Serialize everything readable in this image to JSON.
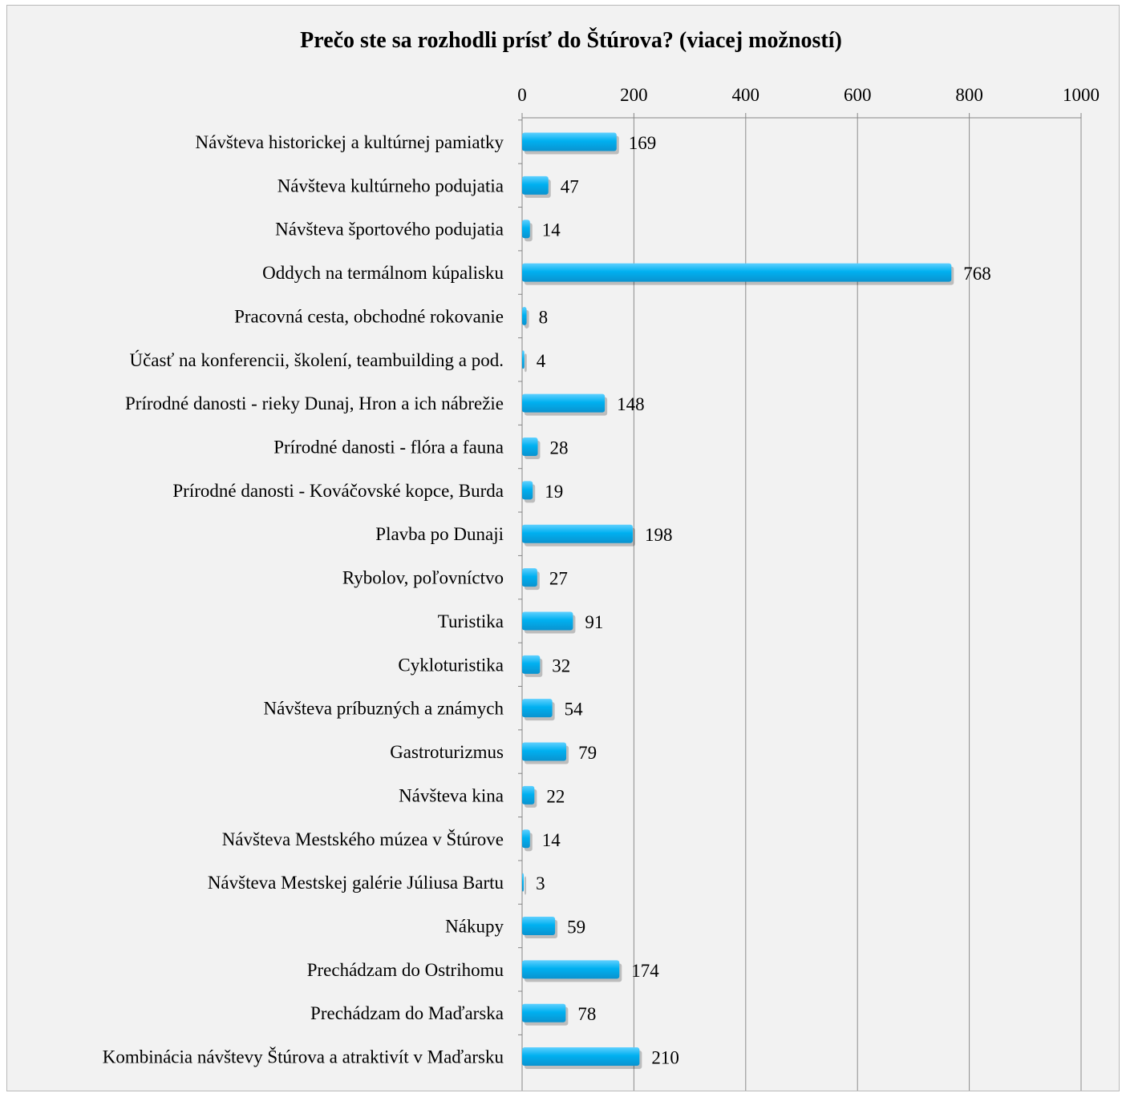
{
  "chart_data": {
    "type": "bar",
    "orientation": "horizontal",
    "title": "Prečo ste sa rozhodli prísť do Štúrova? (viacej možností)",
    "categories": [
      "Návšteva historickej a kultúrnej pamiatky",
      "Návšteva kultúrneho podujatia",
      "Návšteva športového podujatia",
      "Oddych na termálnom kúpalisku",
      "Pracovná cesta, obchodné rokovanie",
      "Účasť na konferencii, školení, teambuilding a pod.",
      "Prírodné danosti - rieky Dunaj, Hron a ich nábrežie",
      "Prírodné danosti - flóra a fauna",
      "Prírodné danosti - Kováčovské kopce, Burda",
      "Plavba po Dunaji",
      "Rybolov, poľovníctvo",
      "Turistika",
      "Cykloturistika",
      "Návšteva príbuzných a známych",
      "Gastroturizmus",
      "Návšteva kina",
      "Návšteva Mestského múzea v Štúrove",
      "Návšteva Mestskej galérie Júliusa Bartu",
      "Nákupy",
      "Prechádzam do Ostrihomu",
      "Prechádzam do Maďarska",
      "Kombinácia návštevy Štúrova a atraktivít v Maďarsku"
    ],
    "values": [
      169,
      47,
      14,
      768,
      8,
      4,
      148,
      28,
      19,
      198,
      27,
      91,
      32,
      54,
      79,
      22,
      14,
      3,
      59,
      174,
      78,
      210
    ],
    "xlim": [
      0,
      1000
    ],
    "x_ticks": [
      0,
      200,
      400,
      600,
      800,
      1000
    ],
    "axis_position": "top",
    "grid": true,
    "data_labels": true,
    "bar_color": "#00b0f0",
    "background_color": "#f2f2f2"
  }
}
